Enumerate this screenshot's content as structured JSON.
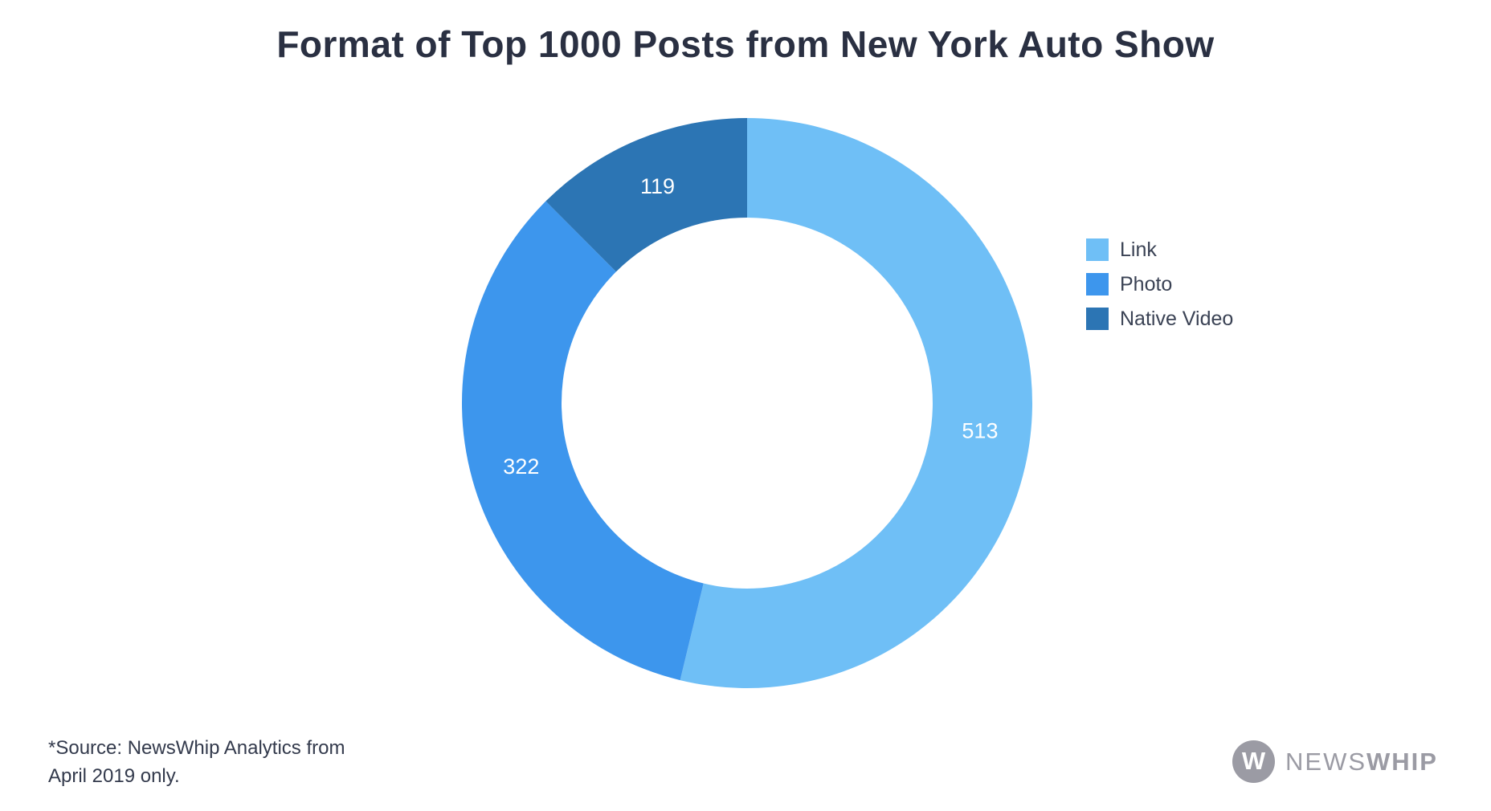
{
  "title": "Format of Top 1000 Posts from New York Auto Show",
  "chart_data": {
    "type": "pie",
    "subtype": "donut",
    "title": "Format of Top 1000 Posts from New York Auto Show",
    "categories": [
      "Link",
      "Photo",
      "Native Video"
    ],
    "values": [
      513,
      322,
      119
    ],
    "colors": [
      "#6FBFF6",
      "#3D96ED",
      "#2C75B4"
    ],
    "data_labels": [
      "513",
      "322",
      "119"
    ],
    "data_label_color": "#FFFFFF",
    "start_angle_deg": 0,
    "direction": "clockwise",
    "donut_hole_ratio": 0.65,
    "legend_position": "right"
  },
  "source_note": {
    "line1": "*Source: NewsWhip Analytics from",
    "line2": "April 2019 only."
  },
  "logo": {
    "monogram": "W",
    "text_light": "NEWS",
    "text_bold": "WHIP",
    "color": "#9B9BA4"
  }
}
